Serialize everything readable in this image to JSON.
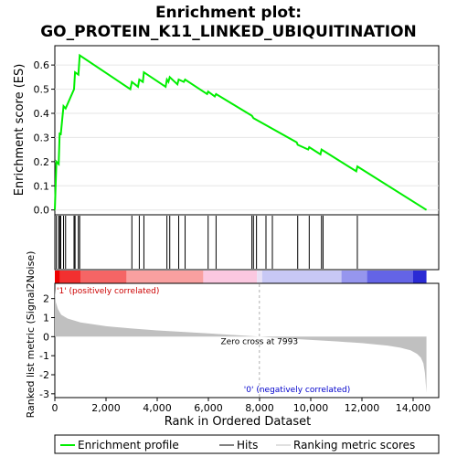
{
  "title_line1": "Enrichment plot:",
  "title_line2": "GO_PROTEIN_K11_LINKED_UBIQUITINATION",
  "chart_data": {
    "type": "line",
    "x_range": [
      0,
      15000
    ],
    "n_genes": 14521,
    "top_panel": {
      "ylabel": "Enrichment score (ES)",
      "ylim": [
        -0.02,
        0.68
      ],
      "yticks": [
        0.0,
        0.1,
        0.2,
        0.3,
        0.4,
        0.5,
        0.6
      ],
      "ytick_labels": [
        "0.0",
        "0.1",
        "0.2",
        "0.3",
        "0.4",
        "0.5",
        "0.6"
      ],
      "series": [
        {
          "name": "Enrichment profile",
          "color": "#00ee00",
          "x": [
            0,
            60,
            150,
            190,
            230,
            340,
            420,
            750,
            790,
            920,
            970,
            2950,
            3010,
            3250,
            3300,
            3440,
            3480,
            4330,
            4380,
            4440,
            4490,
            4790,
            4840,
            5040,
            5090,
            5950,
            5990,
            6250,
            6300,
            7700,
            7760,
            9450,
            9490,
            9900,
            9940,
            10380,
            10420,
            11780,
            11820,
            14521
          ],
          "y": [
            0.0,
            0.2,
            0.19,
            0.32,
            0.31,
            0.43,
            0.42,
            0.5,
            0.57,
            0.56,
            0.64,
            0.5,
            0.53,
            0.51,
            0.54,
            0.53,
            0.57,
            0.51,
            0.54,
            0.53,
            0.55,
            0.52,
            0.54,
            0.53,
            0.54,
            0.48,
            0.49,
            0.47,
            0.48,
            0.39,
            0.38,
            0.28,
            0.27,
            0.25,
            0.26,
            0.23,
            0.25,
            0.16,
            0.18,
            0.0
          ]
        }
      ]
    },
    "hits": [
      60,
      150,
      190,
      230,
      340,
      420,
      750,
      790,
      920,
      970,
      3010,
      3300,
      3480,
      4380,
      4490,
      4840,
      5090,
      5990,
      6300,
      7700,
      7760,
      7880,
      8250,
      8500,
      9490,
      9940,
      10420,
      10480,
      11820
    ],
    "color_bar": {
      "colors": [
        "#ee0000",
        "#f23030",
        "#f56565",
        "#f9a0a0",
        "#fbc8e0",
        "#e8e0f5",
        "#c8c8f5",
        "#9696ee",
        "#6464e6",
        "#2a2ad4"
      ],
      "breaks": [
        0,
        200,
        1000,
        2800,
        5800,
        7900,
        8100,
        11200,
        12200,
        14000,
        14521
      ]
    },
    "bottom_panel": {
      "ylabel": "Ranked list metric (Signal2Noise)",
      "ylim": [
        -3.2,
        2.8
      ],
      "yticks": [
        -3,
        -2,
        -1,
        0,
        1,
        2
      ],
      "ytick_labels": [
        "-3",
        "-2",
        "-1",
        "0",
        "1",
        "2"
      ],
      "metric_x": [
        0,
        40,
        120,
        250,
        500,
        1000,
        2000,
        3000,
        4000,
        5000,
        6000,
        7000,
        7993,
        9000,
        10000,
        11000,
        12000,
        13000,
        13500,
        13900,
        14150,
        14300,
        14400,
        14460,
        14521
      ],
      "metric_y": [
        2.5,
        1.8,
        1.45,
        1.15,
        0.95,
        0.75,
        0.55,
        0.43,
        0.33,
        0.25,
        0.17,
        0.09,
        0.0,
        -0.09,
        -0.17,
        -0.25,
        -0.34,
        -0.47,
        -0.58,
        -0.72,
        -0.9,
        -1.1,
        -1.4,
        -1.9,
        -2.95
      ],
      "zero_cross_label": "Zero cross at 7993",
      "zero_cross": 7993,
      "pos_label": "'1' (positively correlated)",
      "neg_label": "'0' (negatively correlated)"
    },
    "xlabel": "Rank in Ordered Dataset",
    "xticks": [
      0,
      2000,
      4000,
      6000,
      8000,
      10000,
      12000,
      14000
    ],
    "xtick_labels": [
      "0",
      "2,000",
      "4,000",
      "6,000",
      "8,000",
      "10,000",
      "12,000",
      "14,000"
    ],
    "legend": {
      "placement": "bottom",
      "entries": [
        {
          "label": "Enrichment profile",
          "color": "#00ee00"
        },
        {
          "label": "Hits",
          "color": "#000000"
        },
        {
          "label": "Ranking metric scores",
          "color": "#c0c0c0"
        }
      ]
    }
  }
}
